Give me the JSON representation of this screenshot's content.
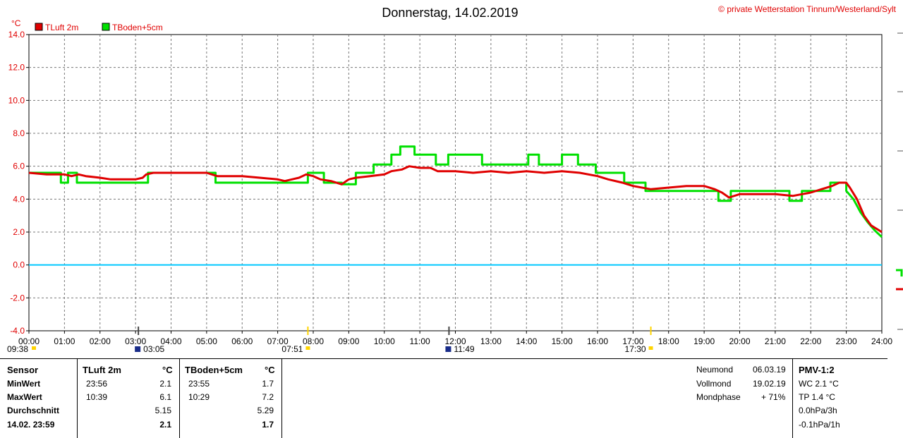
{
  "chart_data": {
    "type": "line",
    "title": "Donnerstag, 14.02.2019",
    "credit": "© private Wetterstation Tinnum/Westerland/Sylt",
    "yunit": "°C",
    "ylim": [
      -4,
      14
    ],
    "yticks": [
      "14.0",
      "12.0",
      "10.0",
      "8.0",
      "6.0",
      "4.0",
      "2.0",
      "0.0",
      "-2.0",
      "-4.0"
    ],
    "xlim": [
      0,
      24
    ],
    "xticks": [
      "00:00",
      "01:00",
      "02:00",
      "03:00",
      "04:00",
      "05:00",
      "06:00",
      "07:00",
      "08:00",
      "09:00",
      "10:00",
      "11:00",
      "12:00",
      "13:00",
      "14:00",
      "15:00",
      "16:00",
      "17:00",
      "18:00",
      "19:00",
      "20:00",
      "21:00",
      "22:00",
      "23:00",
      "24:00"
    ],
    "sun_moon_events": [
      {
        "time": "09:38",
        "hour": 0
      },
      {
        "time": "03:05",
        "hour": 3.08
      },
      {
        "time": "07:51",
        "hour": 7.85
      },
      {
        "time": "11:49",
        "hour": 11.82
      },
      {
        "time": "17:30",
        "hour": 17.5
      }
    ],
    "grid": true,
    "zero_line_color": "#00c8ff",
    "series": [
      {
        "name": "TLuft 2m",
        "color": "#e00000",
        "x": [
          0,
          0.5,
          1,
          1.2,
          1.4,
          1.6,
          2,
          2.3,
          2.6,
          3,
          3.2,
          3.3,
          3.5,
          4,
          4.5,
          5,
          5.3,
          6,
          6.5,
          7,
          7.2,
          7.4,
          7.6,
          7.8,
          8,
          8.2,
          8.5,
          8.8,
          9,
          9.2,
          9.6,
          10,
          10.2,
          10.5,
          10.7,
          11,
          11.3,
          11.5,
          12,
          12.5,
          13,
          13.5,
          14,
          14.5,
          15,
          15.5,
          16,
          16.3,
          16.7,
          17,
          17.5,
          18,
          18.5,
          19,
          19.3,
          19.5,
          19.7,
          20,
          20.5,
          21,
          21.5,
          22,
          22.3,
          22.6,
          22.8,
          23,
          23.1,
          23.3,
          23.5,
          23.7,
          24
        ],
        "values": [
          5.6,
          5.5,
          5.5,
          5.4,
          5.5,
          5.4,
          5.3,
          5.2,
          5.2,
          5.2,
          5.3,
          5.5,
          5.6,
          5.6,
          5.6,
          5.6,
          5.4,
          5.4,
          5.3,
          5.2,
          5.1,
          5.2,
          5.3,
          5.5,
          5.4,
          5.2,
          5.1,
          4.9,
          5.2,
          5.3,
          5.4,
          5.5,
          5.7,
          5.8,
          6.0,
          5.9,
          5.9,
          5.7,
          5.7,
          5.6,
          5.7,
          5.6,
          5.7,
          5.6,
          5.7,
          5.6,
          5.4,
          5.2,
          5.0,
          4.8,
          4.6,
          4.7,
          4.8,
          4.8,
          4.6,
          4.4,
          4.1,
          4.3,
          4.3,
          4.3,
          4.2,
          4.4,
          4.6,
          4.8,
          5.0,
          5.0,
          4.7,
          4.0,
          3.0,
          2.4,
          2.0
        ]
      },
      {
        "name": "TBoden+5cm",
        "color": "#00e000",
        "x": [
          0,
          0.9,
          0.9,
          1.1,
          1.1,
          1.35,
          1.35,
          3.35,
          3.35,
          5.25,
          5.25,
          7.85,
          7.85,
          8.3,
          8.3,
          8.8,
          8.8,
          9.2,
          9.2,
          9.7,
          9.7,
          10.2,
          10.2,
          10.45,
          10.45,
          10.85,
          10.85,
          11.45,
          11.45,
          11.8,
          11.8,
          12.75,
          12.75,
          14.05,
          14.05,
          14.35,
          14.35,
          15,
          15,
          15.45,
          15.45,
          15.95,
          15.95,
          16.75,
          16.75,
          17.35,
          17.35,
          19.4,
          19.4,
          19.75,
          19.75,
          21.4,
          21.4,
          21.75,
          21.75,
          22.55,
          22.55,
          23,
          23,
          23.2,
          23.4,
          23.6,
          23.8,
          24
        ],
        "values": [
          5.6,
          5.6,
          5.0,
          5.0,
          5.6,
          5.6,
          5.0,
          5.0,
          5.6,
          5.6,
          5.0,
          5.0,
          5.6,
          5.6,
          5.0,
          5.0,
          4.9,
          4.9,
          5.6,
          5.6,
          6.1,
          6.1,
          6.7,
          6.7,
          7.2,
          7.2,
          6.7,
          6.7,
          6.1,
          6.1,
          6.7,
          6.7,
          6.1,
          6.1,
          6.7,
          6.7,
          6.1,
          6.1,
          6.7,
          6.7,
          6.1,
          6.1,
          5.6,
          5.6,
          5.0,
          5.0,
          4.5,
          4.5,
          3.9,
          3.9,
          4.5,
          4.5,
          3.9,
          3.9,
          4.5,
          4.5,
          5.0,
          5.0,
          4.5,
          4.0,
          3.2,
          2.6,
          2.1,
          1.7
        ]
      }
    ]
  },
  "table": {
    "headers": {
      "sensor": "Sensor",
      "tluft": "TLuft 2m",
      "unit1": "°C",
      "tboden": "TBoden+5cm",
      "unit2": "°C"
    },
    "rows": [
      {
        "label": "MinWert",
        "t1": "23:56",
        "v1": "2.1",
        "t2": "23:55",
        "v2": "1.7"
      },
      {
        "label": "MaxWert",
        "t1": "10:39",
        "v1": "6.1",
        "t2": "10:29",
        "v2": "7.2"
      },
      {
        "label": "Durchschnitt",
        "t1": "",
        "v1": "5.15",
        "t2": "",
        "v2": "5.29"
      },
      {
        "label": "14.02. 23:59",
        "t1": "",
        "v1": "2.1",
        "t2": "",
        "v2": "1.7"
      }
    ],
    "moon": [
      {
        "label": "Neumond",
        "value": "06.03.19"
      },
      {
        "label": "Vollmond",
        "value": "19.02.19"
      },
      {
        "label": "Mondphase",
        "value": "+ 71%"
      }
    ],
    "pmv": {
      "title": "PMV-1:2",
      "lines": [
        "WC 2.1 °C",
        "TP 1.4 °C",
        "0.0hPa/3h",
        "-0.1hPa/1h"
      ]
    }
  }
}
